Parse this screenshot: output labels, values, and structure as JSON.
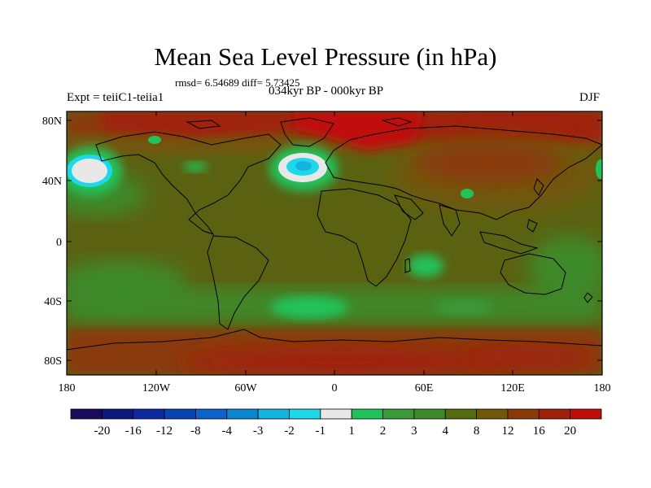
{
  "title": "Mean Sea Level Pressure (in hPa)",
  "stats": "rmsd= 6.54689 diff= 5.73425",
  "subtitle": "034kyr BP - 000kyr BP",
  "left_label": "Expt = teiiC1-teiia1",
  "right_label": "DJF",
  "lat_ticks": [
    "80N",
    "40N",
    "0",
    "40S",
    "80S"
  ],
  "lon_ticks": [
    "180",
    "120W",
    "60W",
    "0",
    "60E",
    "120E",
    "180"
  ],
  "colorbar": {
    "labels": [
      "-20",
      "-16",
      "-12",
      "-8",
      "-4",
      "-3",
      "-2",
      "-1",
      "1",
      "2",
      "3",
      "4",
      "8",
      "12",
      "16",
      "20"
    ],
    "colors": [
      "#1a0a5c",
      "#0c1a80",
      "#0c2aa0",
      "#0a44b4",
      "#0c62c8",
      "#0a86d0",
      "#14b4e0",
      "#1ed8ea",
      "#e8e8e8",
      "#22c25a",
      "#3a9a3a",
      "#3e8a2a",
      "#566a10",
      "#72560a",
      "#8a3a08",
      "#a0200a",
      "#c00e0a"
    ]
  }
}
